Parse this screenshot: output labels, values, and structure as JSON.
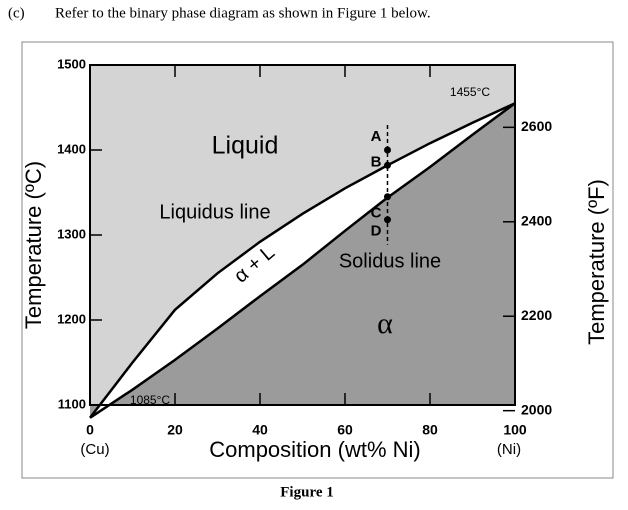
{
  "question_label": "(c)",
  "question_text": "Refer to the binary phase diagram as shown in Figure 1 below.",
  "caption": "Figure 1",
  "chart_data": {
    "type": "phase-diagram",
    "xlabel": "Composition (wt% Ni)",
    "ylabel": "Temperature (ºC)",
    "y2label": "Temperature (ºF)",
    "xlim": [
      0,
      100
    ],
    "ylim": [
      1100,
      1500
    ],
    "y2lim": [
      2012,
      2732
    ],
    "xticks": [
      0,
      20,
      40,
      60,
      80,
      100
    ],
    "yticks": [
      1100,
      1200,
      1300,
      1400,
      1500
    ],
    "y2ticks": [
      2000,
      2200,
      2400,
      2600
    ],
    "x_end_labels": [
      "(Cu)",
      "(Ni)"
    ],
    "x": [
      0,
      10,
      20,
      30,
      40,
      50,
      60,
      70,
      80,
      90,
      100
    ],
    "series": [
      {
        "name": "Liquidus line",
        "color": "#000000",
        "values": [
          1085,
          1150,
          1212,
          1255,
          1292,
          1325,
          1355,
          1382,
          1408,
          1432,
          1455
        ]
      },
      {
        "name": "Solidus line",
        "color": "#000000",
        "values": [
          1085,
          1118,
          1153,
          1190,
          1228,
          1265,
          1305,
          1344,
          1380,
          1418,
          1455
        ]
      }
    ],
    "regions": {
      "liquid": "Liquid",
      "two_phase": "α + L",
      "alpha": "α"
    },
    "region_colors": {
      "liquid": "#d4d4d4",
      "two_phase": "#ffffff",
      "alpha": "#9b9b9b"
    },
    "annotations": [
      "1455°C",
      "1085°C"
    ],
    "points": [
      {
        "label": "A",
        "x": 70,
        "y": 1400
      },
      {
        "label": "B",
        "x": 70,
        "y": 1382
      },
      {
        "label": "C",
        "x": 70,
        "y": 1345
      },
      {
        "label": "D",
        "x": 70,
        "y": 1318
      }
    ]
  }
}
